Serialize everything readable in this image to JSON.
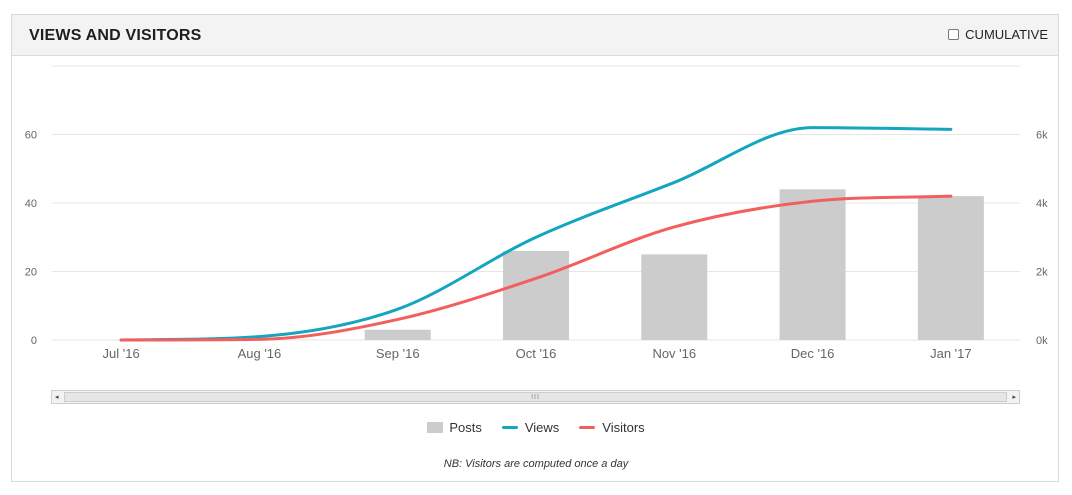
{
  "panel": {
    "title": "VIEWS AND VISITORS",
    "cumulative_label": "CUMULATIVE"
  },
  "chart_data": {
    "type": "bar",
    "categories": [
      "Jul '16",
      "Aug '16",
      "Sep '16",
      "Oct '16",
      "Nov '16",
      "Dec '16",
      "Jan '17"
    ],
    "series": [
      {
        "name": "Posts",
        "type": "bar",
        "axis": "left",
        "values": [
          0,
          0,
          3,
          26,
          25,
          44,
          42
        ],
        "color": "#cccccc"
      },
      {
        "name": "Views",
        "type": "line",
        "axis": "right",
        "values": [
          0,
          100,
          900,
          3000,
          4600,
          6200,
          6150
        ],
        "color": "#14a6bf"
      },
      {
        "name": "Visitors",
        "type": "line",
        "axis": "right",
        "values": [
          0,
          20,
          600,
          1800,
          3300,
          4050,
          4200
        ],
        "color": "#f25f5c"
      }
    ],
    "y_left": {
      "ticks": [
        "0",
        "20",
        "40",
        "60"
      ],
      "ylim": [
        0,
        80
      ]
    },
    "y_right": {
      "ticks": [
        "0k",
        "2k",
        "4k",
        "6k"
      ],
      "ylim": [
        0,
        8000
      ]
    },
    "grid": true,
    "legend": "bottom-center",
    "note": "NB: Visitors are computed once a day"
  },
  "scrollbar": {
    "left_arrow": "◂",
    "right_arrow": "▸",
    "grip": "III"
  }
}
